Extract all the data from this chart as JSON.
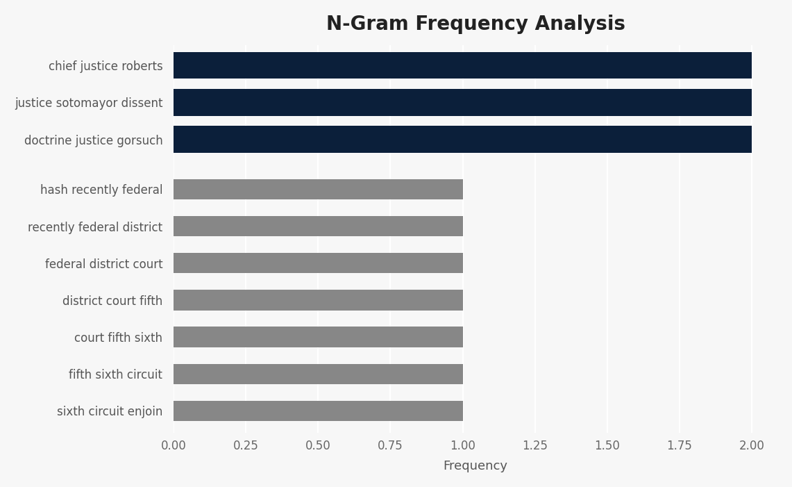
{
  "title": "N-Gram Frequency Analysis",
  "categories": [
    "sixth circuit enjoin",
    "fifth sixth circuit",
    "court fifth sixth",
    "district court fifth",
    "federal district court",
    "recently federal district",
    "hash recently federal",
    "doctrine justice gorsuch",
    "justice sotomayor dissent",
    "chief justice roberts"
  ],
  "values": [
    1,
    1,
    1,
    1,
    1,
    1,
    1,
    2,
    2,
    2
  ],
  "bar_colors": [
    "#878787",
    "#878787",
    "#878787",
    "#878787",
    "#878787",
    "#878787",
    "#878787",
    "#0b1f3a",
    "#0b1f3a",
    "#0b1f3a"
  ],
  "background_color": "#f7f7f7",
  "title_fontsize": 20,
  "xlabel": "Frequency",
  "xlim": [
    0,
    2.09
  ],
  "xticks": [
    0.0,
    0.25,
    0.5,
    0.75,
    1.0,
    1.25,
    1.5,
    1.75,
    2.0
  ],
  "xlabel_fontsize": 13,
  "tick_label_fontsize": 12,
  "label_color": "#555555",
  "grid_color": "#ffffff",
  "dark_bar_height": 0.72,
  "gray_bar_height": 0.55
}
